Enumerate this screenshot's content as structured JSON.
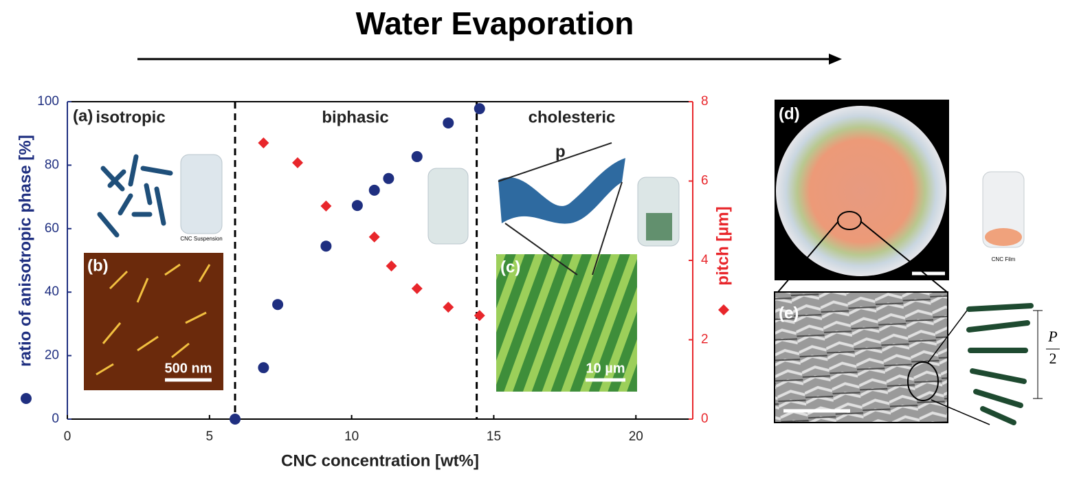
{
  "chart_data": {
    "type": "scatter",
    "title": "Water Evaporation",
    "x_label": "CNC concentration [wt%]",
    "y_label": "ratio of anisotropic phase [%]",
    "y2_label": "pitch [µm]",
    "xlim": [
      0,
      22
    ],
    "xticks": [
      0,
      5,
      10,
      15,
      20
    ],
    "ylim": [
      0,
      100
    ],
    "yticks": [
      0,
      20,
      40,
      60,
      80,
      100
    ],
    "y2lim": [
      0,
      8
    ],
    "y2ticks": [
      0,
      2,
      4,
      6,
      8
    ],
    "vlines": [
      5.9,
      14.4
    ],
    "series": [
      {
        "color": "#1f2f80",
        "marker": "circle",
        "x": [
          5.9,
          6.9,
          7.4,
          9.1,
          10.2,
          10.8,
          11.3,
          12.3,
          13.4,
          14.5
        ],
        "values": [
          0,
          16.2,
          36.1,
          54.5,
          67.3,
          72.1,
          75.8,
          82.7,
          93.3,
          97.8
        ]
      },
      {
        "color": "#e8262b",
        "marker": "diamond",
        "axis": "y2",
        "x": [
          6.9,
          8.1,
          9.1,
          10.8,
          11.4,
          12.3,
          13.4,
          14.5
        ],
        "values": [
          6.96,
          6.46,
          5.37,
          4.59,
          3.86,
          3.29,
          2.82,
          2.61
        ]
      }
    ],
    "regions": [
      "isotropic",
      "biphasic",
      "cholesteric"
    ],
    "panels": [
      "(a)",
      "(b)",
      "(c)",
      "(d)",
      "(e)"
    ],
    "scale_bars": [
      "500 nm",
      "10 µm"
    ],
    "jar_labels": [
      "CNC Suspension",
      "CNC Film"
    ],
    "pitch_symbol": "p",
    "half_pitch": {
      "numerator": "P",
      "denominator": "2"
    }
  }
}
